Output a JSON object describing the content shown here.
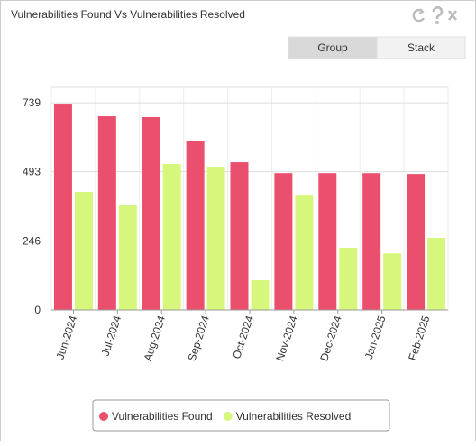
{
  "chart_data": {
    "type": "bar",
    "title": "Vulnerabilities Found Vs Vulnerabilities Resolved",
    "categories": [
      "Jun-2024",
      "Jul-2024",
      "Aug-2024",
      "Sep-2024",
      "Oct-2024",
      "Nov-2024",
      "Dec-2024",
      "Jan-2025",
      "Feb-2025"
    ],
    "series": [
      {
        "name": "Vulnerabilities Found",
        "color": "#eb4f6e",
        "values": [
          736,
          691,
          688,
          604,
          527,
          488,
          488,
          488,
          485
        ]
      },
      {
        "name": "Vulnerabilities Resolved",
        "color": "#d6f77c",
        "values": [
          421,
          376,
          521,
          511,
          106,
          411,
          222,
          202,
          257
        ]
      }
    ],
    "ylim": [
      0,
      794
    ],
    "yticks": [
      0,
      246,
      493,
      739
    ],
    "grid": true,
    "legend": "bottom"
  },
  "toolbar": {
    "buttons": [
      "Group",
      "Stack"
    ],
    "selected": 0
  }
}
